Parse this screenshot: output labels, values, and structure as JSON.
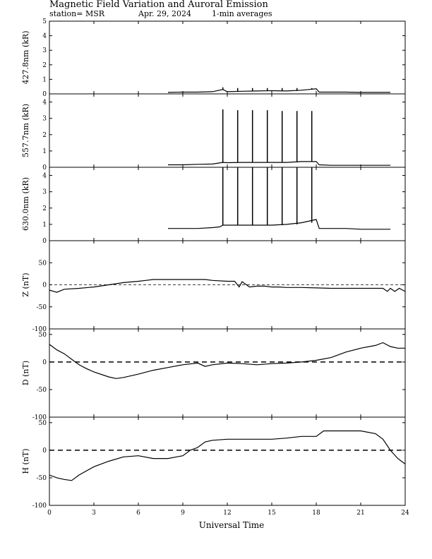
{
  "header": {
    "title": "Magnetic Field Variation and Auroral Emission",
    "station": "station= MSR",
    "date": "Apr. 29, 2024",
    "averaging": "1-min averages"
  },
  "chart_data": {
    "type": "line",
    "xlabel": "Universal Time",
    "xlim": [
      0,
      24
    ],
    "xticks": [
      0,
      3,
      6,
      9,
      12,
      15,
      18,
      21,
      24
    ],
    "panels": [
      {
        "ylabel": "427.8nm (kR)",
        "ylim": [
          0,
          5
        ],
        "yticks": [
          0,
          1,
          2,
          3,
          4,
          5
        ],
        "dashed_zero": false,
        "series": {
          "x": [
            8.0,
            9,
            10,
            11,
            11.7,
            12,
            13,
            14,
            15,
            16,
            17,
            17.5,
            18,
            18.2,
            19,
            20,
            21,
            22,
            23.0
          ],
          "y": [
            0.1,
            0.12,
            0.12,
            0.15,
            0.3,
            0.15,
            0.18,
            0.2,
            0.22,
            0.2,
            0.25,
            0.3,
            0.35,
            0.12,
            0.12,
            0.12,
            0.1,
            0.1,
            0.1
          ]
        },
        "spikes": [
          {
            "x": 11.7,
            "y": 0.45
          },
          {
            "x": 12.7,
            "y": 0.4
          },
          {
            "x": 13.7,
            "y": 0.4
          },
          {
            "x": 14.7,
            "y": 0.4
          },
          {
            "x": 15.7,
            "y": 0.4
          },
          {
            "x": 16.7,
            "y": 0.4
          },
          {
            "x": 17.7,
            "y": 0.4
          }
        ]
      },
      {
        "ylabel": "557.7nm (kR)",
        "ylim": [
          0,
          4.5
        ],
        "yticks": [
          0,
          1,
          2,
          3,
          4
        ],
        "dashed_zero": false,
        "series": {
          "x": [
            8.0,
            9,
            10,
            11,
            11.7,
            12,
            13,
            14,
            15,
            16,
            17,
            18,
            18.2,
            19,
            20,
            21,
            22,
            23.0
          ],
          "y": [
            0.15,
            0.15,
            0.18,
            0.2,
            0.3,
            0.28,
            0.3,
            0.3,
            0.3,
            0.3,
            0.35,
            0.35,
            0.15,
            0.12,
            0.12,
            0.12,
            0.12,
            0.12
          ]
        },
        "spikes": [
          {
            "x": 11.7,
            "y": 3.55
          },
          {
            "x": 12.7,
            "y": 3.5
          },
          {
            "x": 13.7,
            "y": 3.5
          },
          {
            "x": 14.7,
            "y": 3.5
          },
          {
            "x": 15.7,
            "y": 3.45
          },
          {
            "x": 16.7,
            "y": 3.45
          },
          {
            "x": 17.7,
            "y": 3.45
          }
        ]
      },
      {
        "ylabel": "630.0nm (kR)",
        "ylim": [
          0,
          4.5
        ],
        "yticks": [
          0,
          1,
          2,
          3,
          4
        ],
        "dashed_zero": false,
        "series": {
          "x": [
            8.0,
            9,
            10,
            11,
            11.5,
            11.7,
            12,
            13,
            14,
            15,
            16,
            17,
            18,
            18.2,
            19,
            20,
            21,
            22,
            23.0
          ],
          "y": [
            0.75,
            0.75,
            0.75,
            0.8,
            0.85,
            0.95,
            0.95,
            0.95,
            0.95,
            0.95,
            1.0,
            1.1,
            1.3,
            0.75,
            0.75,
            0.75,
            0.7,
            0.7,
            0.7
          ]
        },
        "spikes": [
          {
            "x": 11.7,
            "y": 4.5
          },
          {
            "x": 12.7,
            "y": 4.5
          },
          {
            "x": 13.7,
            "y": 4.5
          },
          {
            "x": 14.7,
            "y": 4.5
          },
          {
            "x": 15.7,
            "y": 4.5
          },
          {
            "x": 16.7,
            "y": 4.5
          },
          {
            "x": 17.7,
            "y": 4.5
          }
        ]
      },
      {
        "ylabel": "Z (nT)",
        "ylim": [
          -100,
          100
        ],
        "yticks": [
          -100,
          -50,
          0,
          50
        ],
        "dashed_zero": true,
        "series": {
          "x": [
            0,
            0.3,
            0.5,
            1,
            2,
            3,
            4,
            5,
            6,
            6.5,
            7,
            8,
            9,
            10,
            10.5,
            11,
            12,
            12.5,
            12.8,
            13,
            13.5,
            14,
            14.5,
            15,
            15.5,
            16,
            17,
            18,
            19,
            20,
            21,
            22,
            22.5,
            22.8,
            23,
            23.3,
            23.6,
            24
          ],
          "y": [
            -12,
            -15,
            -17,
            -10,
            -8,
            -5,
            0,
            5,
            8,
            10,
            12,
            12,
            12,
            12,
            12,
            10,
            8,
            8,
            -5,
            7,
            -5,
            -3,
            -3,
            -5,
            -5,
            -6,
            -6,
            -7,
            -8,
            -8,
            -8,
            -8,
            -8,
            -15,
            -8,
            -15,
            -8,
            -15
          ]
        }
      },
      {
        "ylabel": "D (nT)",
        "ylim": [
          -100,
          60
        ],
        "yticks": [
          -100,
          -50,
          0,
          50
        ],
        "dashed_zero": true,
        "series": {
          "x": [
            0,
            0.5,
            1,
            1.5,
            2,
            2.5,
            3,
            4,
            4.5,
            5,
            6,
            7,
            8,
            9,
            10,
            10.5,
            11,
            12,
            13,
            14,
            15,
            16,
            17,
            18,
            19,
            20,
            21,
            22,
            22.5,
            23,
            23.5,
            24
          ],
          "y": [
            32,
            22,
            15,
            5,
            -5,
            -12,
            -18,
            -27,
            -30,
            -28,
            -22,
            -15,
            -10,
            -5,
            -2,
            -8,
            -5,
            -2,
            -3,
            -5,
            -3,
            -2,
            0,
            3,
            8,
            18,
            25,
            30,
            35,
            28,
            25,
            25
          ]
        }
      },
      {
        "ylabel": "H (nT)",
        "ylim": [
          -100,
          60
        ],
        "yticks": [
          -100,
          -50,
          0,
          50
        ],
        "dashed_zero": true,
        "series": {
          "x": [
            0,
            0.5,
            1,
            1.5,
            2,
            3,
            4,
            5,
            6,
            7,
            8,
            9,
            9.5,
            10,
            10.5,
            11,
            12,
            13,
            14,
            15,
            16,
            17,
            17.5,
            18,
            18.5,
            19,
            20,
            21,
            22,
            22.5,
            23,
            23.5,
            24
          ],
          "y": [
            -45,
            -50,
            -53,
            -55,
            -45,
            -30,
            -20,
            -12,
            -10,
            -15,
            -15,
            -10,
            0,
            5,
            15,
            18,
            20,
            20,
            20,
            20,
            22,
            25,
            25,
            25,
            35,
            35,
            35,
            35,
            30,
            20,
            0,
            -15,
            -25
          ]
        }
      }
    ]
  }
}
